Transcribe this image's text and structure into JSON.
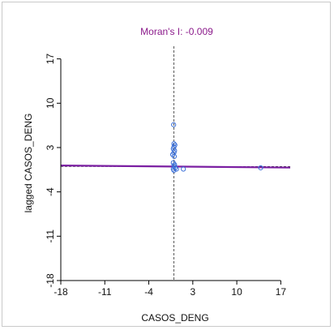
{
  "colors": {
    "title": "#8b1a8b",
    "regression": "#7b1fa2",
    "points": "#3a6fd8",
    "axis": "#000000",
    "reference": "#333333"
  },
  "chart_data": {
    "type": "scatter",
    "title": "Moran's I: -0.009",
    "xlabel": "CASOS_DENG",
    "ylabel": "lagged CASOS_DENG",
    "xlim": [
      -18,
      18.5
    ],
    "ylim": [
      -18,
      19
    ],
    "x_ticks": [
      -18,
      -11,
      -4,
      3,
      10,
      17
    ],
    "y_ticks": [
      -18,
      -11,
      -4,
      3,
      10,
      17
    ],
    "reference_lines": {
      "x": 0,
      "y": 0
    },
    "regression": {
      "slope": -0.009,
      "intercept": 0.0
    },
    "points": [
      {
        "x": -0.05,
        "y": 6.6
      },
      {
        "x": 0.0,
        "y": 3.6
      },
      {
        "x": 0.15,
        "y": 3.4
      },
      {
        "x": 0.0,
        "y": 3.1
      },
      {
        "x": -0.1,
        "y": 2.8
      },
      {
        "x": 0.1,
        "y": 2.5
      },
      {
        "x": 0.0,
        "y": 2.2
      },
      {
        "x": -0.2,
        "y": 1.9
      },
      {
        "x": 0.05,
        "y": 1.6
      },
      {
        "x": -0.1,
        "y": 0.6
      },
      {
        "x": 0.1,
        "y": 0.3
      },
      {
        "x": 0.0,
        "y": 0.1
      },
      {
        "x": 0.2,
        "y": -0.2
      },
      {
        "x": -0.1,
        "y": -0.4
      },
      {
        "x": 0.0,
        "y": -0.6
      },
      {
        "x": 0.4,
        "y": -0.4
      },
      {
        "x": 1.5,
        "y": -0.4
      },
      {
        "x": 13.8,
        "y": -0.2
      }
    ],
    "grid": false
  }
}
